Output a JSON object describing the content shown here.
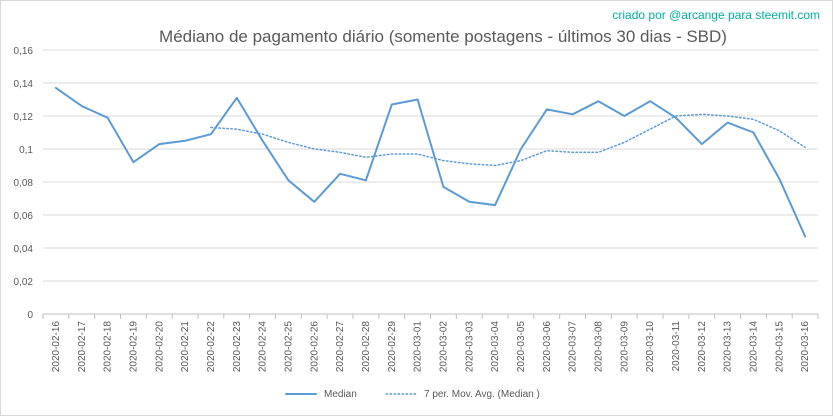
{
  "credit": "criado por @arcange para steemit.com",
  "chart_data": {
    "type": "line",
    "title": "Médiano de pagamento diário (somente postagens - últimos 30 dias - SBD)",
    "xlabel": "",
    "ylabel": "",
    "categories": [
      "2020-02-16",
      "2020-02-17",
      "2020-02-18",
      "2020-02-19",
      "2020-02-20",
      "2020-02-21",
      "2020-02-22",
      "2020-02-23",
      "2020-02-24",
      "2020-02-25",
      "2020-02-26",
      "2020-02-27",
      "2020-02-28",
      "2020-02-29",
      "2020-03-01",
      "2020-03-02",
      "2020-03-03",
      "2020-03-04",
      "2020-03-05",
      "2020-03-06",
      "2020-03-07",
      "2020-03-08",
      "2020-03-09",
      "2020-03-10",
      "2020-03-11",
      "2020-03-12",
      "2020-03-13",
      "2020-03-14",
      "2020-03-15",
      "2020-03-16"
    ],
    "yticks": [
      "0",
      "0,02",
      "0,04",
      "0,06",
      "0,08",
      "0,1",
      "0,12",
      "0,14",
      "0,16"
    ],
    "ylim": [
      0,
      0.16
    ],
    "grid": true,
    "legend_position": "bottom",
    "series": [
      {
        "name": "Median",
        "style": "solid",
        "color": "#5b9bd5",
        "values": [
          0.137,
          0.126,
          0.119,
          0.092,
          0.103,
          0.105,
          0.109,
          0.131,
          0.105,
          0.081,
          0.068,
          0.085,
          0.081,
          0.127,
          0.13,
          0.077,
          0.068,
          0.066,
          0.1,
          0.124,
          0.121,
          0.129,
          0.12,
          0.129,
          0.119,
          0.103,
          0.116,
          0.11,
          0.082,
          0.047
        ]
      },
      {
        "name": "7 per. Mov. Avg. (Median )",
        "style": "dotted",
        "color": "#5b9bd5",
        "values": [
          null,
          null,
          null,
          null,
          null,
          null,
          0.113,
          0.112,
          0.109,
          0.104,
          0.1,
          0.098,
          0.095,
          0.097,
          0.097,
          0.093,
          0.091,
          0.09,
          0.093,
          0.099,
          0.098,
          0.098,
          0.104,
          0.112,
          0.12,
          0.121,
          0.12,
          0.118,
          0.111,
          0.101
        ]
      }
    ]
  }
}
